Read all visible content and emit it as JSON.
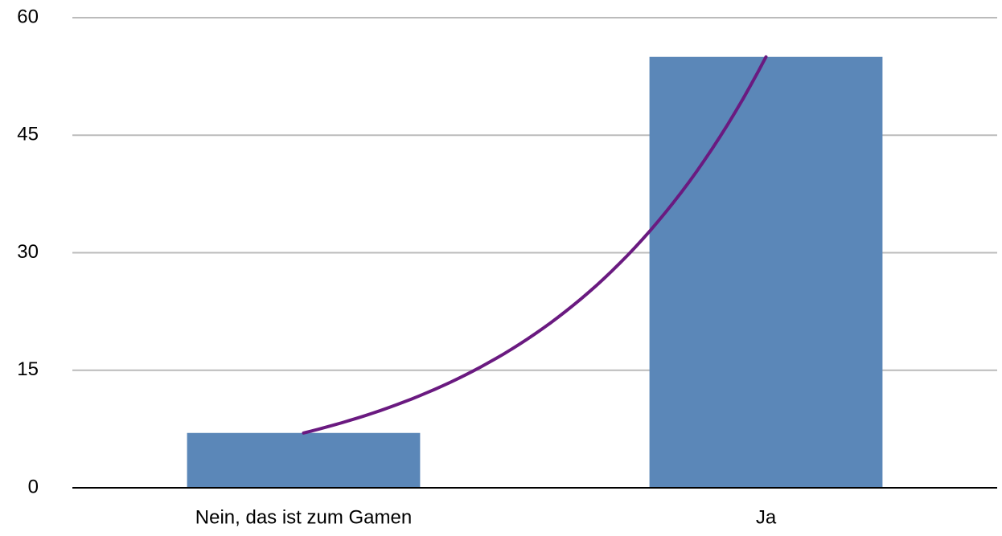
{
  "chart_data": {
    "type": "bar",
    "categories": [
      "Nein, das ist zum Gamen",
      "Ja"
    ],
    "values": [
      7,
      55
    ],
    "color": "#5b87b8",
    "ylim": [
      0,
      60
    ],
    "yticks": [
      0,
      15,
      30,
      45,
      60
    ],
    "grid": true,
    "trendline": {
      "type": "exponential",
      "color": "#6a1a80"
    }
  }
}
